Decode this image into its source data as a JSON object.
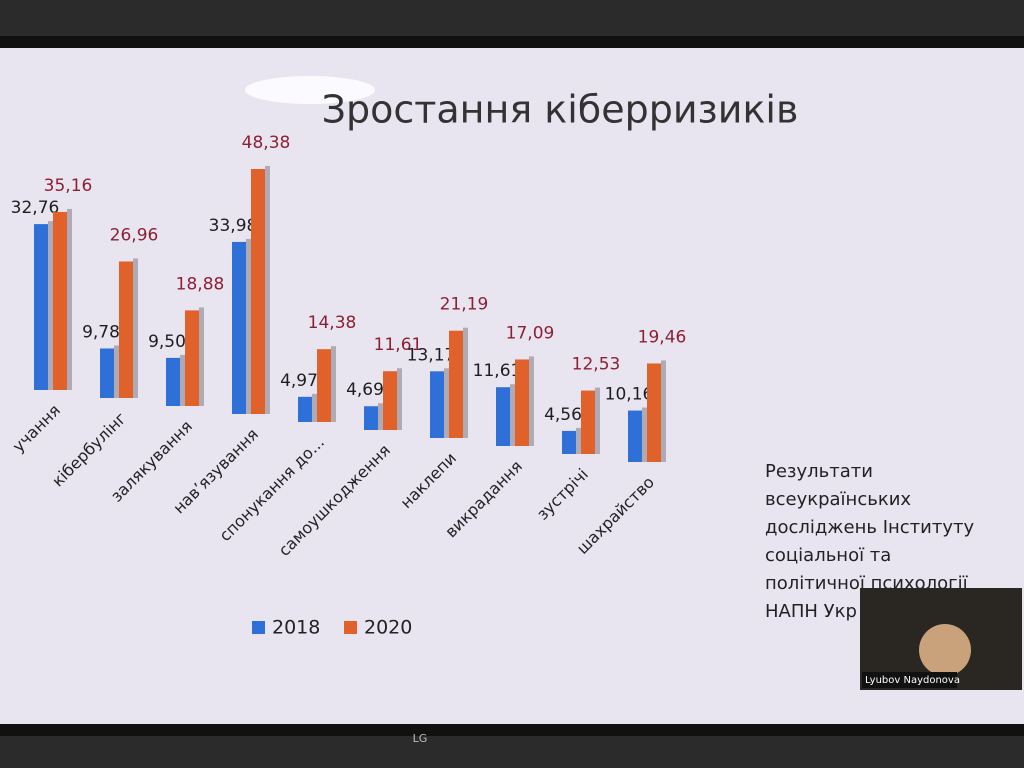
{
  "chart_data": {
    "type": "bar",
    "title": "Зростання кіберризиків",
    "categories": [
      "учання",
      "кібербулінг",
      "залякування",
      "нав’язування",
      "спонукання до...",
      "самоушкодження",
      "наклепи",
      "викрадання",
      "зустрічі",
      "шахрайство"
    ],
    "series": [
      {
        "name": "2018",
        "color": "#2f6fd8",
        "label_color": "#1e1e1e",
        "values": [
          32.76,
          9.78,
          9.5,
          33.98,
          4.97,
          4.69,
          13.17,
          11.61,
          4.56,
          10.16
        ],
        "value_labels": [
          "32,76",
          "9,78",
          "9,50",
          "33,98",
          "4,97",
          "4,69",
          "13,17",
          "11,61",
          "4,56",
          "10,16"
        ]
      },
      {
        "name": "2020",
        "color": "#e0622a",
        "label_color": "#8e1f33",
        "values": [
          35.16,
          26.96,
          18.88,
          48.38,
          14.38,
          11.61,
          21.19,
          17.09,
          12.53,
          19.46
        ],
        "value_labels": [
          "35,16",
          "26,96",
          "18,88",
          "48,38",
          "14,38",
          "11,61",
          "21,19",
          "17,09",
          "12,53",
          "19,46"
        ]
      }
    ],
    "legend": "bottom",
    "annotation": [
      "Результати",
      "всеукраїнських",
      "досліджень Інституту",
      "соціальної та",
      "політичної психології",
      "НАПН Укр"
    ]
  },
  "overlay": {
    "participant": "Lyubov Naydonova",
    "brand": "LG"
  }
}
